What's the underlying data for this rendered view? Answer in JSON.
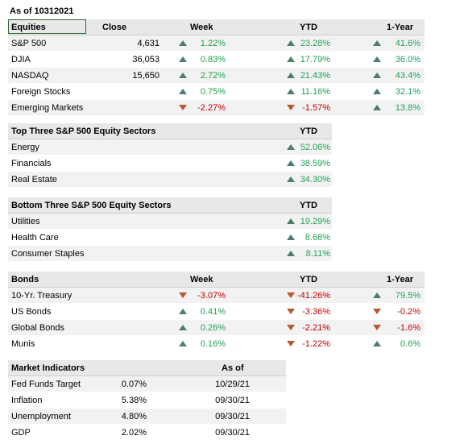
{
  "as_of": "As of 10312021",
  "equities": {
    "headers": {
      "name": "Equities",
      "close": "Close",
      "week": "Week",
      "ytd": "YTD",
      "year": "1-Year"
    },
    "rows": [
      {
        "name": "S&P 500",
        "close": "4,631",
        "week": "1.22%",
        "week_dir": "up",
        "ytd": "23.28%",
        "ytd_dir": "up",
        "year": "41.6%",
        "year_dir": "up"
      },
      {
        "name": "DJIA",
        "close": "36,053",
        "week": "0.83%",
        "week_dir": "up",
        "ytd": "17.79%",
        "ytd_dir": "up",
        "year": "36.0%",
        "year_dir": "up"
      },
      {
        "name": "NASDAQ",
        "close": "15,650",
        "week": "2.72%",
        "week_dir": "up",
        "ytd": "21.43%",
        "ytd_dir": "up",
        "year": "43.4%",
        "year_dir": "up"
      },
      {
        "name": "Foreign Stocks",
        "close": "",
        "week": "0.75%",
        "week_dir": "up",
        "ytd": "11.16%",
        "ytd_dir": "up",
        "year": "32.1%",
        "year_dir": "up"
      },
      {
        "name": "Emerging Markets",
        "close": "",
        "week": "-2.27%",
        "week_dir": "down",
        "ytd": "-1.57%",
        "ytd_dir": "down",
        "year": "13.8%",
        "year_dir": "up"
      }
    ]
  },
  "top_sectors": {
    "headers": {
      "name": "Top Three S&P 500 Equity Sectors",
      "ytd": "YTD"
    },
    "rows": [
      {
        "name": "Energy",
        "ytd": "52.06%",
        "ytd_dir": "up"
      },
      {
        "name": "Financials",
        "ytd": "38.59%",
        "ytd_dir": "up"
      },
      {
        "name": "Real Estate",
        "ytd": "34.30%",
        "ytd_dir": "up"
      }
    ]
  },
  "bottom_sectors": {
    "headers": {
      "name": "Bottom Three S&P 500 Equity Sectors",
      "ytd": "YTD"
    },
    "rows": [
      {
        "name": "Utilities",
        "ytd": "19.29%",
        "ytd_dir": "up"
      },
      {
        "name": "Health Care",
        "ytd": "8.68%",
        "ytd_dir": "up"
      },
      {
        "name": "Consumer Staples",
        "ytd": "8.11%",
        "ytd_dir": "up"
      }
    ]
  },
  "bonds": {
    "headers": {
      "name": "Bonds",
      "week": "Week",
      "ytd": "YTD",
      "year": "1-Year"
    },
    "rows": [
      {
        "name": "10-Yr. Treasury",
        "week": "-3.07%",
        "week_dir": "down",
        "ytd": "-41.26%",
        "ytd_dir": "down",
        "year": "79.5%",
        "year_dir": "up"
      },
      {
        "name": "US Bonds",
        "week": "0.41%",
        "week_dir": "up",
        "ytd": "-3.36%",
        "ytd_dir": "down",
        "year": "-0.2%",
        "year_dir": "down"
      },
      {
        "name": "Global Bonds",
        "week": "0.26%",
        "week_dir": "up",
        "ytd": "-2.21%",
        "ytd_dir": "down",
        "year": "-1.6%",
        "year_dir": "down"
      },
      {
        "name": "Munis",
        "week": "0.16%",
        "week_dir": "up",
        "ytd": "-1.22%",
        "ytd_dir": "down",
        "year": "0.6%",
        "year_dir": "up"
      }
    ]
  },
  "indicators": {
    "headers": {
      "name": "Market Indicators",
      "asof": "As of"
    },
    "rows": [
      {
        "name": "Fed Funds Target",
        "value": "0.07%",
        "asof": "10/29/21"
      },
      {
        "name": "Inflation",
        "value": "5.38%",
        "asof": "09/30/21"
      },
      {
        "name": "Unemployment",
        "value": "4.80%",
        "asof": "09/30/21"
      },
      {
        "name": "GDP",
        "value": "2.02%",
        "asof": "09/30/21"
      }
    ]
  },
  "colors": {
    "positive": "#21a055",
    "negative": "#c00000",
    "up_arrow": "#4d7e6a",
    "down_arrow": "#b45a2e",
    "header_bg": "#e8e8e8"
  }
}
